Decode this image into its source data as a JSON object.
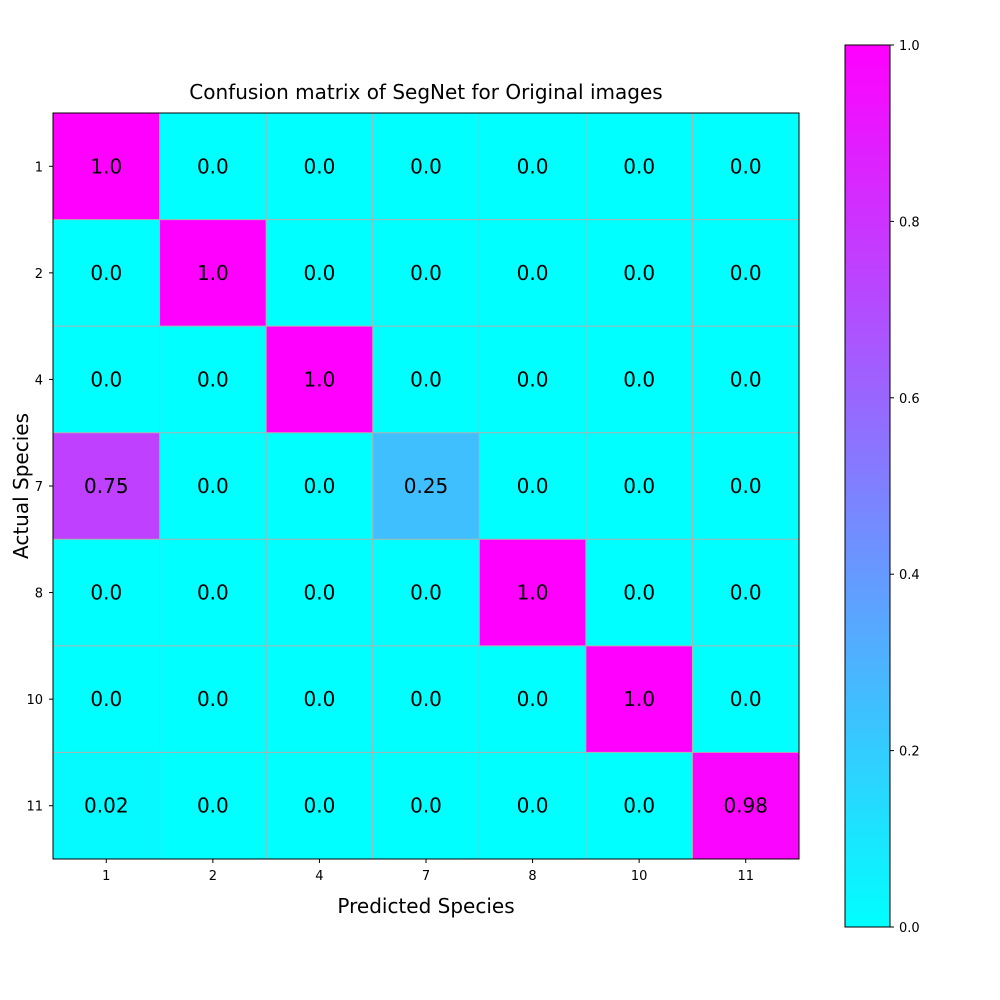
{
  "chart_data": {
    "type": "heatmap",
    "title": "Confusion matrix of SegNet for Original images",
    "xlabel": "Predicted Species",
    "ylabel": "Actual Species",
    "x_categories": [
      "1",
      "2",
      "4",
      "7",
      "8",
      "10",
      "11"
    ],
    "y_categories": [
      "1",
      "2",
      "4",
      "7",
      "8",
      "10",
      "11"
    ],
    "values": [
      [
        1.0,
        0.0,
        0.0,
        0.0,
        0.0,
        0.0,
        0.0
      ],
      [
        0.0,
        1.0,
        0.0,
        0.0,
        0.0,
        0.0,
        0.0
      ],
      [
        0.0,
        0.0,
        1.0,
        0.0,
        0.0,
        0.0,
        0.0
      ],
      [
        0.75,
        0.0,
        0.0,
        0.25,
        0.0,
        0.0,
        0.0
      ],
      [
        0.0,
        0.0,
        0.0,
        0.0,
        1.0,
        0.0,
        0.0
      ],
      [
        0.0,
        0.0,
        0.0,
        0.0,
        0.0,
        1.0,
        0.0
      ],
      [
        0.02,
        0.0,
        0.0,
        0.0,
        0.0,
        0.0,
        0.98
      ]
    ],
    "cell_labels": [
      [
        "1.0",
        "0.0",
        "0.0",
        "0.0",
        "0.0",
        "0.0",
        "0.0"
      ],
      [
        "0.0",
        "1.0",
        "0.0",
        "0.0",
        "0.0",
        "0.0",
        "0.0"
      ],
      [
        "0.0",
        "0.0",
        "1.0",
        "0.0",
        "0.0",
        "0.0",
        "0.0"
      ],
      [
        "0.75",
        "0.0",
        "0.0",
        "0.25",
        "0.0",
        "0.0",
        "0.0"
      ],
      [
        "0.0",
        "0.0",
        "0.0",
        "0.0",
        "1.0",
        "0.0",
        "0.0"
      ],
      [
        "0.0",
        "0.0",
        "0.0",
        "0.0",
        "0.0",
        "1.0",
        "0.0"
      ],
      [
        "0.02",
        "0.0",
        "0.0",
        "0.0",
        "0.0",
        "0.0",
        "0.98"
      ]
    ],
    "colormap": "cool",
    "color_min": "#00ffff",
    "color_max": "#ff00ff",
    "grid_color": "#b0b0b0",
    "grid": true,
    "colorbar": {
      "range": [
        0.0,
        1.0
      ],
      "ticks": [
        "0.0",
        "0.2",
        "0.4",
        "0.6",
        "0.8",
        "1.0"
      ],
      "tick_values": [
        0.0,
        0.2,
        0.4,
        0.6,
        0.8,
        1.0
      ],
      "placement": "right"
    }
  }
}
